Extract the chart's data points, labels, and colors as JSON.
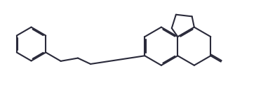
{
  "bg_color": "#ffffff",
  "line_color": "#2a2a3a",
  "line_width": 1.5,
  "dbo": 0.04,
  "figsize": [
    3.92,
    1.35
  ],
  "dpi": 100,
  "xlim": [
    0.0,
    9.8
  ],
  "ylim": [
    0.0,
    3.35
  ]
}
